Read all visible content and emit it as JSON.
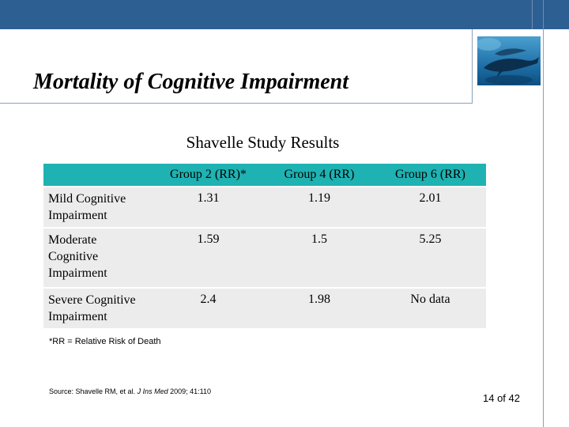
{
  "slide": {
    "title": "Mortality of Cognitive Impairment",
    "subtitle": "Shavelle Study Results"
  },
  "table": {
    "columns": [
      "",
      "Group 2 (RR)*",
      "Group 4 (RR)",
      "Group 6 (RR)"
    ],
    "rows": [
      {
        "label": "Mild Cognitive Impairment",
        "values": [
          "1.31",
          "1.19",
          "2.01"
        ]
      },
      {
        "label": "Moderate Cognitive Impairment",
        "values": [
          "1.59",
          "1.5",
          "5.25"
        ]
      },
      {
        "label": "Severe Cognitive Impairment",
        "values": [
          "2.4",
          "1.98",
          "No data"
        ]
      }
    ]
  },
  "footnote": "*RR = Relative Risk of Death",
  "source": {
    "prefix": "Source: Shavelle RM, et al. ",
    "journal": "J Ins Med",
    "suffix": " 2009; 41:110"
  },
  "page_number": "14 of 42",
  "colors": {
    "top_bar": "#2e5f93",
    "table_header": "#1fb2b2",
    "table_row": "#ececec"
  },
  "logo": {
    "icon": "whale-photo-icon"
  }
}
